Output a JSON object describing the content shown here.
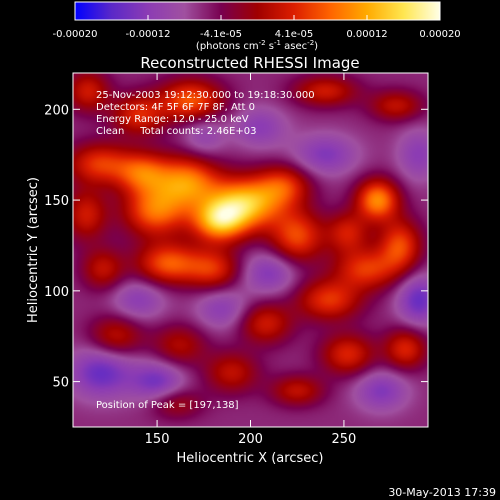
{
  "chart_data": {
    "type": "heatmap",
    "title": "Reconstructed RHESSI Image",
    "xlabel": "Heliocentric X (arcsec)",
    "ylabel": "Heliocentric Y (arcsec)",
    "xlim": [
      105,
      295
    ],
    "ylim": [
      25,
      220
    ],
    "x_ticks": [
      150,
      200,
      250
    ],
    "y_ticks": [
      50,
      100,
      150,
      200
    ],
    "annotation_lines": [
      "25-Nov-2003 19:12:30.000 to 19:18:30.000",
      "Detectors: 4F 5F 6F 7F 8F, Att 0",
      "Energy Range: 12.0 - 25.0 keV",
      "Clean     Total counts: 2.46E+03"
    ],
    "peak_label": "Position of Peak = [197,138]",
    "peak_position": [
      197,
      138
    ],
    "colorbar": {
      "range": [
        -0.0002,
        0.0002
      ],
      "tick_labels": [
        "-0.00020",
        "-0.00012",
        "-4.1e-05",
        "4.1e-05",
        "0.00012",
        "0.00020"
      ],
      "unit_label": "(photons cm^-2 s^-1 asec^-2)",
      "colors": [
        "#0000ff",
        "#5a28c8",
        "#8c3cb4",
        "#a050a0",
        "#780050",
        "#a00000",
        "#dc1e00",
        "#ff6400",
        "#ffaa00",
        "#ffe650",
        "#ffffe6"
      ]
    },
    "sources": [
      {
        "x": 197,
        "y": 148,
        "value": 0.000195,
        "sx": 14,
        "sy": 10
      },
      {
        "x": 183,
        "y": 138,
        "value": 0.00016,
        "sx": 10,
        "sy": 8
      },
      {
        "x": 166,
        "y": 160,
        "value": 0.00015,
        "sx": 12,
        "sy": 10
      },
      {
        "x": 149,
        "y": 144,
        "value": 0.00014,
        "sx": 12,
        "sy": 10
      },
      {
        "x": 142,
        "y": 165,
        "value": 0.00012,
        "sx": 10,
        "sy": 8
      },
      {
        "x": 119,
        "y": 170,
        "value": 0.00011,
        "sx": 12,
        "sy": 8
      },
      {
        "x": 112,
        "y": 142,
        "value": 9e-05,
        "sx": 8,
        "sy": 10
      },
      {
        "x": 168,
        "y": 205,
        "value": 0.00013,
        "sx": 12,
        "sy": 8
      },
      {
        "x": 140,
        "y": 197,
        "value": 0.0001,
        "sx": 10,
        "sy": 8
      },
      {
        "x": 121,
        "y": 112,
        "value": 8e-05,
        "sx": 8,
        "sy": 8
      },
      {
        "x": 156,
        "y": 115,
        "value": 0.00013,
        "sx": 12,
        "sy": 8
      },
      {
        "x": 180,
        "y": 112,
        "value": 0.0001,
        "sx": 10,
        "sy": 8
      },
      {
        "x": 128,
        "y": 75,
        "value": 8e-05,
        "sx": 10,
        "sy": 8
      },
      {
        "x": 162,
        "y": 70,
        "value": 7e-05,
        "sx": 10,
        "sy": 8
      },
      {
        "x": 225,
        "y": 130,
        "value": 0.00012,
        "sx": 10,
        "sy": 10
      },
      {
        "x": 218,
        "y": 158,
        "value": 0.0001,
        "sx": 10,
        "sy": 8
      },
      {
        "x": 268,
        "y": 150,
        "value": 0.00016,
        "sx": 8,
        "sy": 8
      },
      {
        "x": 280,
        "y": 125,
        "value": 0.00012,
        "sx": 8,
        "sy": 10
      },
      {
        "x": 262,
        "y": 112,
        "value": 0.00011,
        "sx": 12,
        "sy": 8
      },
      {
        "x": 252,
        "y": 132,
        "value": 9e-05,
        "sx": 8,
        "sy": 8
      },
      {
        "x": 242,
        "y": 95,
        "value": 0.00011,
        "sx": 12,
        "sy": 8
      },
      {
        "x": 252,
        "y": 65,
        "value": 0.0001,
        "sx": 10,
        "sy": 8
      },
      {
        "x": 283,
        "y": 68,
        "value": 0.0001,
        "sx": 8,
        "sy": 8
      },
      {
        "x": 208,
        "y": 82,
        "value": 9e-05,
        "sx": 10,
        "sy": 8
      },
      {
        "x": 190,
        "y": 55,
        "value": 8e-05,
        "sx": 10,
        "sy": 8
      },
      {
        "x": 240,
        "y": 210,
        "value": 9e-05,
        "sx": 12,
        "sy": 6
      },
      {
        "x": 278,
        "y": 202,
        "value": 8e-05,
        "sx": 10,
        "sy": 6
      },
      {
        "x": 113,
        "y": 210,
        "value": 9e-05,
        "sx": 8,
        "sy": 8
      },
      {
        "x": 160,
        "y": 38,
        "value": 6e-05,
        "sx": 10,
        "sy": 6
      },
      {
        "x": 225,
        "y": 45,
        "value": 8e-05,
        "sx": 10,
        "sy": 6
      },
      {
        "x": 140,
        "y": 95,
        "value": -6e-05,
        "sx": 10,
        "sy": 8
      },
      {
        "x": 120,
        "y": 55,
        "value": -9e-05,
        "sx": 12,
        "sy": 10
      },
      {
        "x": 150,
        "y": 50,
        "value": -8e-05,
        "sx": 10,
        "sy": 8
      },
      {
        "x": 210,
        "y": 110,
        "value": -7e-05,
        "sx": 10,
        "sy": 8
      },
      {
        "x": 240,
        "y": 175,
        "value": -7e-05,
        "sx": 12,
        "sy": 8
      },
      {
        "x": 205,
        "y": 190,
        "value": -6e-05,
        "sx": 10,
        "sy": 8
      },
      {
        "x": 290,
        "y": 95,
        "value": -9e-05,
        "sx": 8,
        "sy": 10
      },
      {
        "x": 270,
        "y": 45,
        "value": -7e-05,
        "sx": 10,
        "sy": 8
      },
      {
        "x": 185,
        "y": 90,
        "value": -6e-05,
        "sx": 10,
        "sy": 8
      },
      {
        "x": 290,
        "y": 175,
        "value": -6e-05,
        "sx": 8,
        "sy": 10
      },
      {
        "x": 175,
        "y": 185,
        "value": -5e-05,
        "sx": 8,
        "sy": 8
      }
    ]
  },
  "footer": {
    "timestamp": "30-May-2013 17:39"
  }
}
